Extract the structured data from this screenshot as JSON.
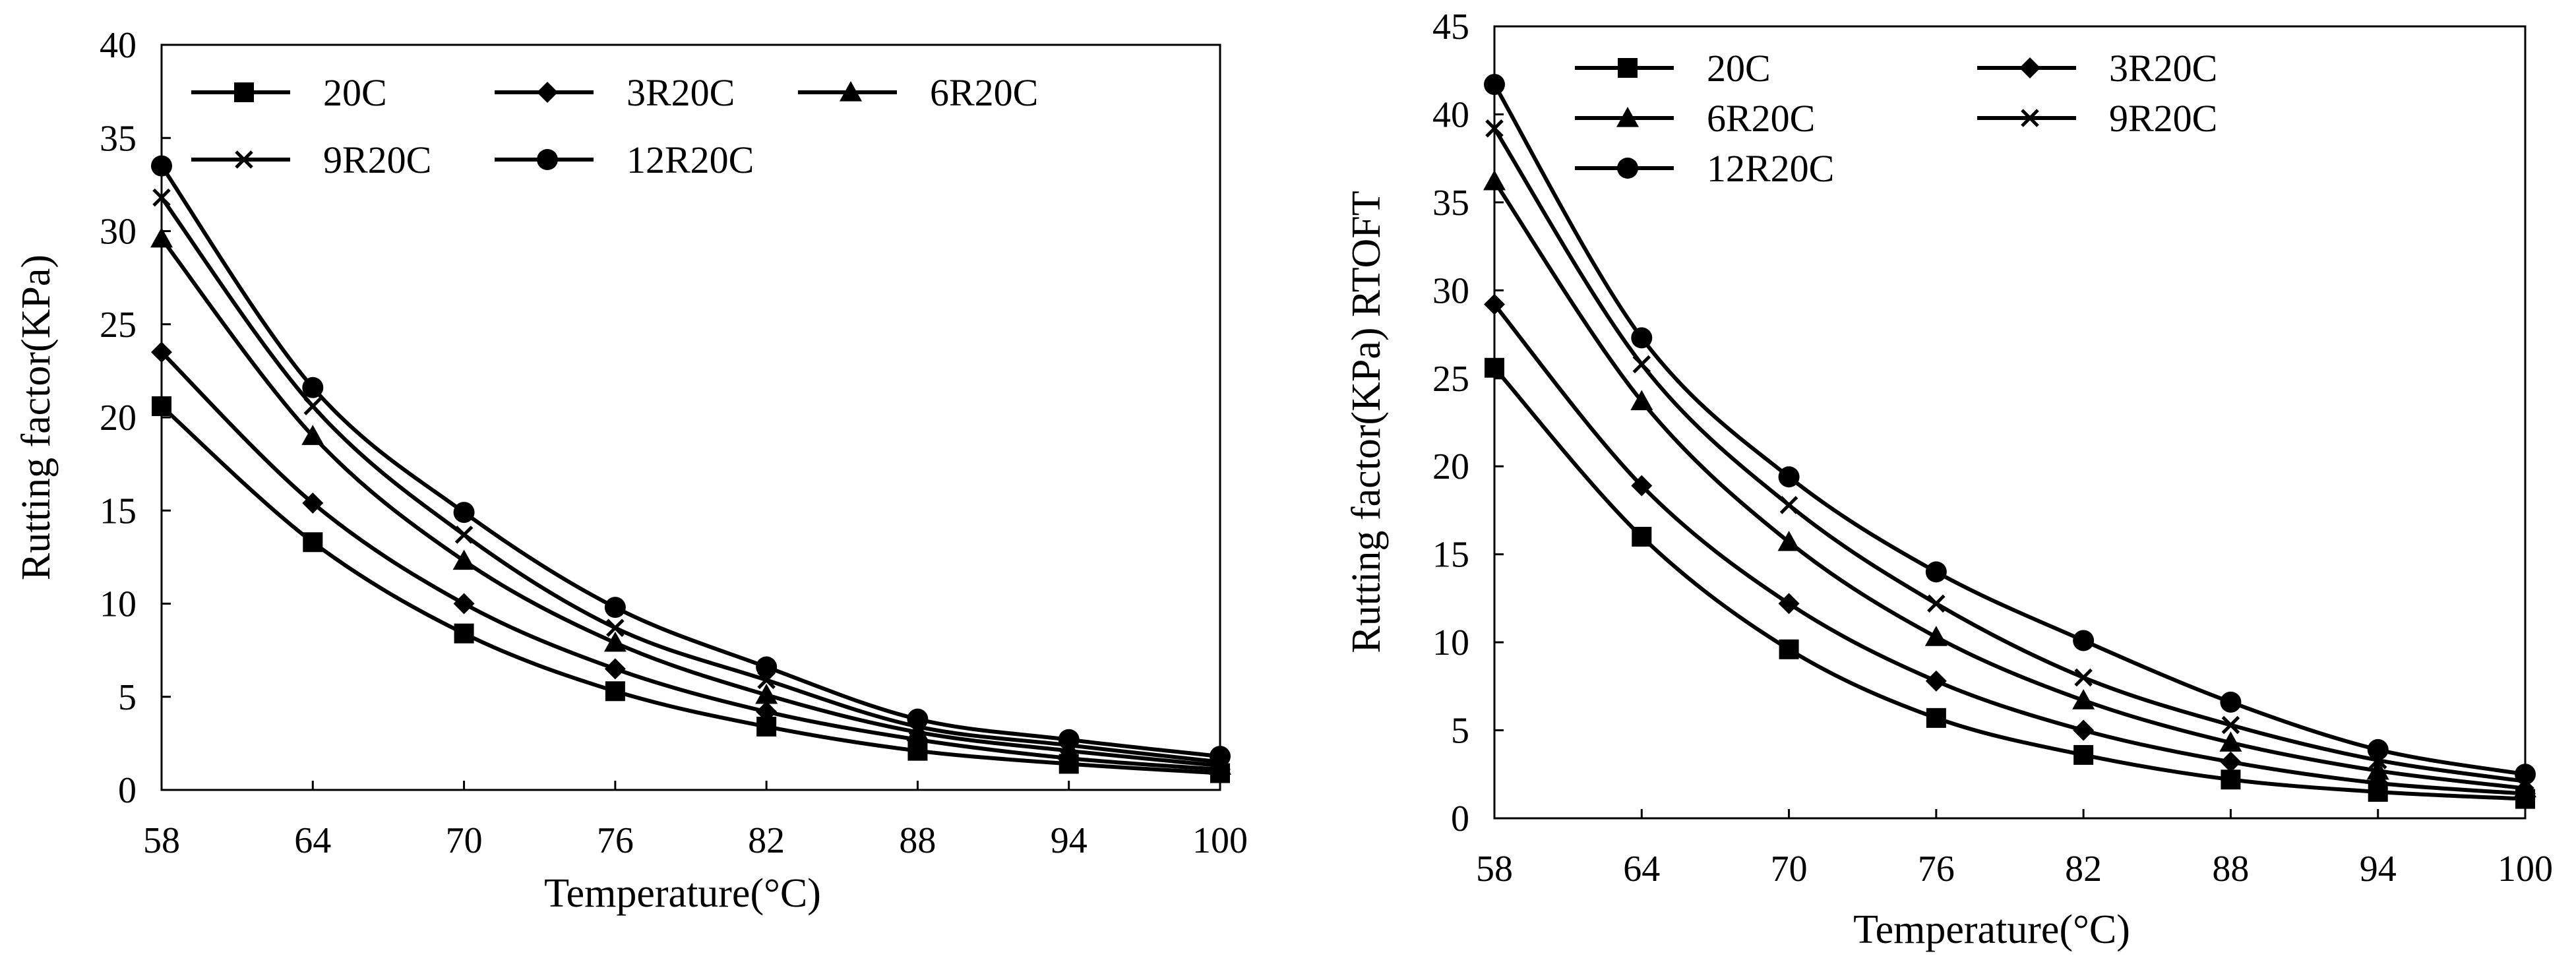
{
  "colors": {
    "line": "#000000",
    "background": "#ffffff"
  },
  "chart_data": [
    {
      "type": "line",
      "title": "",
      "xlabel": "Temperature(°C)",
      "ylabel": "Rutting factor(KPa)",
      "x": [
        58,
        64,
        70,
        76,
        82,
        88,
        94,
        100
      ],
      "x_tick_labels": [
        "58",
        "64",
        "70",
        "76",
        "82",
        "88",
        "94",
        "100"
      ],
      "ylim": [
        0,
        40
      ],
      "y_ticks": [
        0,
        5,
        10,
        15,
        20,
        25,
        30,
        35,
        40
      ],
      "y_tick_labels": [
        "0",
        "5",
        "10",
        "15",
        "20",
        "25",
        "30",
        "35",
        "40"
      ],
      "grid": false,
      "legend": {
        "placement": "top-left",
        "columns": 3
      },
      "series": [
        {
          "name": "20C",
          "marker": "square",
          "values": [
            20.6,
            13.3,
            8.4,
            5.3,
            3.4,
            2.1,
            1.4,
            0.9
          ]
        },
        {
          "name": "3R20C",
          "marker": "diamond",
          "values": [
            23.5,
            15.4,
            10.0,
            6.5,
            4.2,
            2.7,
            1.7,
            1.1
          ]
        },
        {
          "name": "6R20C",
          "marker": "triangle",
          "values": [
            29.6,
            19.0,
            12.3,
            7.9,
            5.1,
            3.1,
            2.1,
            1.3
          ]
        },
        {
          "name": "9R20C",
          "marker": "x",
          "values": [
            31.8,
            20.6,
            13.7,
            8.7,
            5.9,
            3.4,
            2.4,
            1.5
          ]
        },
        {
          "name": "12R20C",
          "marker": "circle",
          "values": [
            33.5,
            21.6,
            14.9,
            9.8,
            6.6,
            3.8,
            2.7,
            1.8
          ]
        }
      ]
    },
    {
      "type": "line",
      "title": "",
      "xlabel": "Temperature(°C)",
      "ylabel": "Rutting factor(KPa) RTOFT",
      "x": [
        58,
        64,
        70,
        76,
        82,
        88,
        94,
        100
      ],
      "x_tick_labels": [
        "58",
        "64",
        "70",
        "76",
        "82",
        "88",
        "94",
        "100"
      ],
      "ylim": [
        0,
        45
      ],
      "y_ticks": [
        0,
        5,
        10,
        15,
        20,
        25,
        30,
        35,
        40,
        45
      ],
      "y_tick_labels": [
        "0",
        "5",
        "10",
        "15",
        "20",
        "25",
        "30",
        "35",
        "40",
        "45"
      ],
      "grid": false,
      "legend": {
        "placement": "top",
        "columns": 2
      },
      "series": [
        {
          "name": "20C",
          "marker": "square",
          "values": [
            25.6,
            16.0,
            9.6,
            5.7,
            3.6,
            2.2,
            1.5,
            1.1
          ]
        },
        {
          "name": "3R20C",
          "marker": "diamond",
          "values": [
            29.2,
            18.9,
            12.2,
            7.8,
            5.0,
            3.2,
            2.0,
            1.4
          ]
        },
        {
          "name": "6R20C",
          "marker": "triangle",
          "values": [
            36.2,
            23.7,
            15.7,
            10.3,
            6.7,
            4.3,
            2.7,
            1.7
          ]
        },
        {
          "name": "9R20C",
          "marker": "x",
          "values": [
            39.2,
            25.8,
            17.8,
            12.2,
            8.0,
            5.3,
            3.3,
            2.1
          ]
        },
        {
          "name": "12R20C",
          "marker": "circle",
          "values": [
            41.7,
            27.3,
            19.4,
            14.0,
            10.1,
            6.6,
            3.9,
            2.5
          ]
        }
      ]
    }
  ]
}
